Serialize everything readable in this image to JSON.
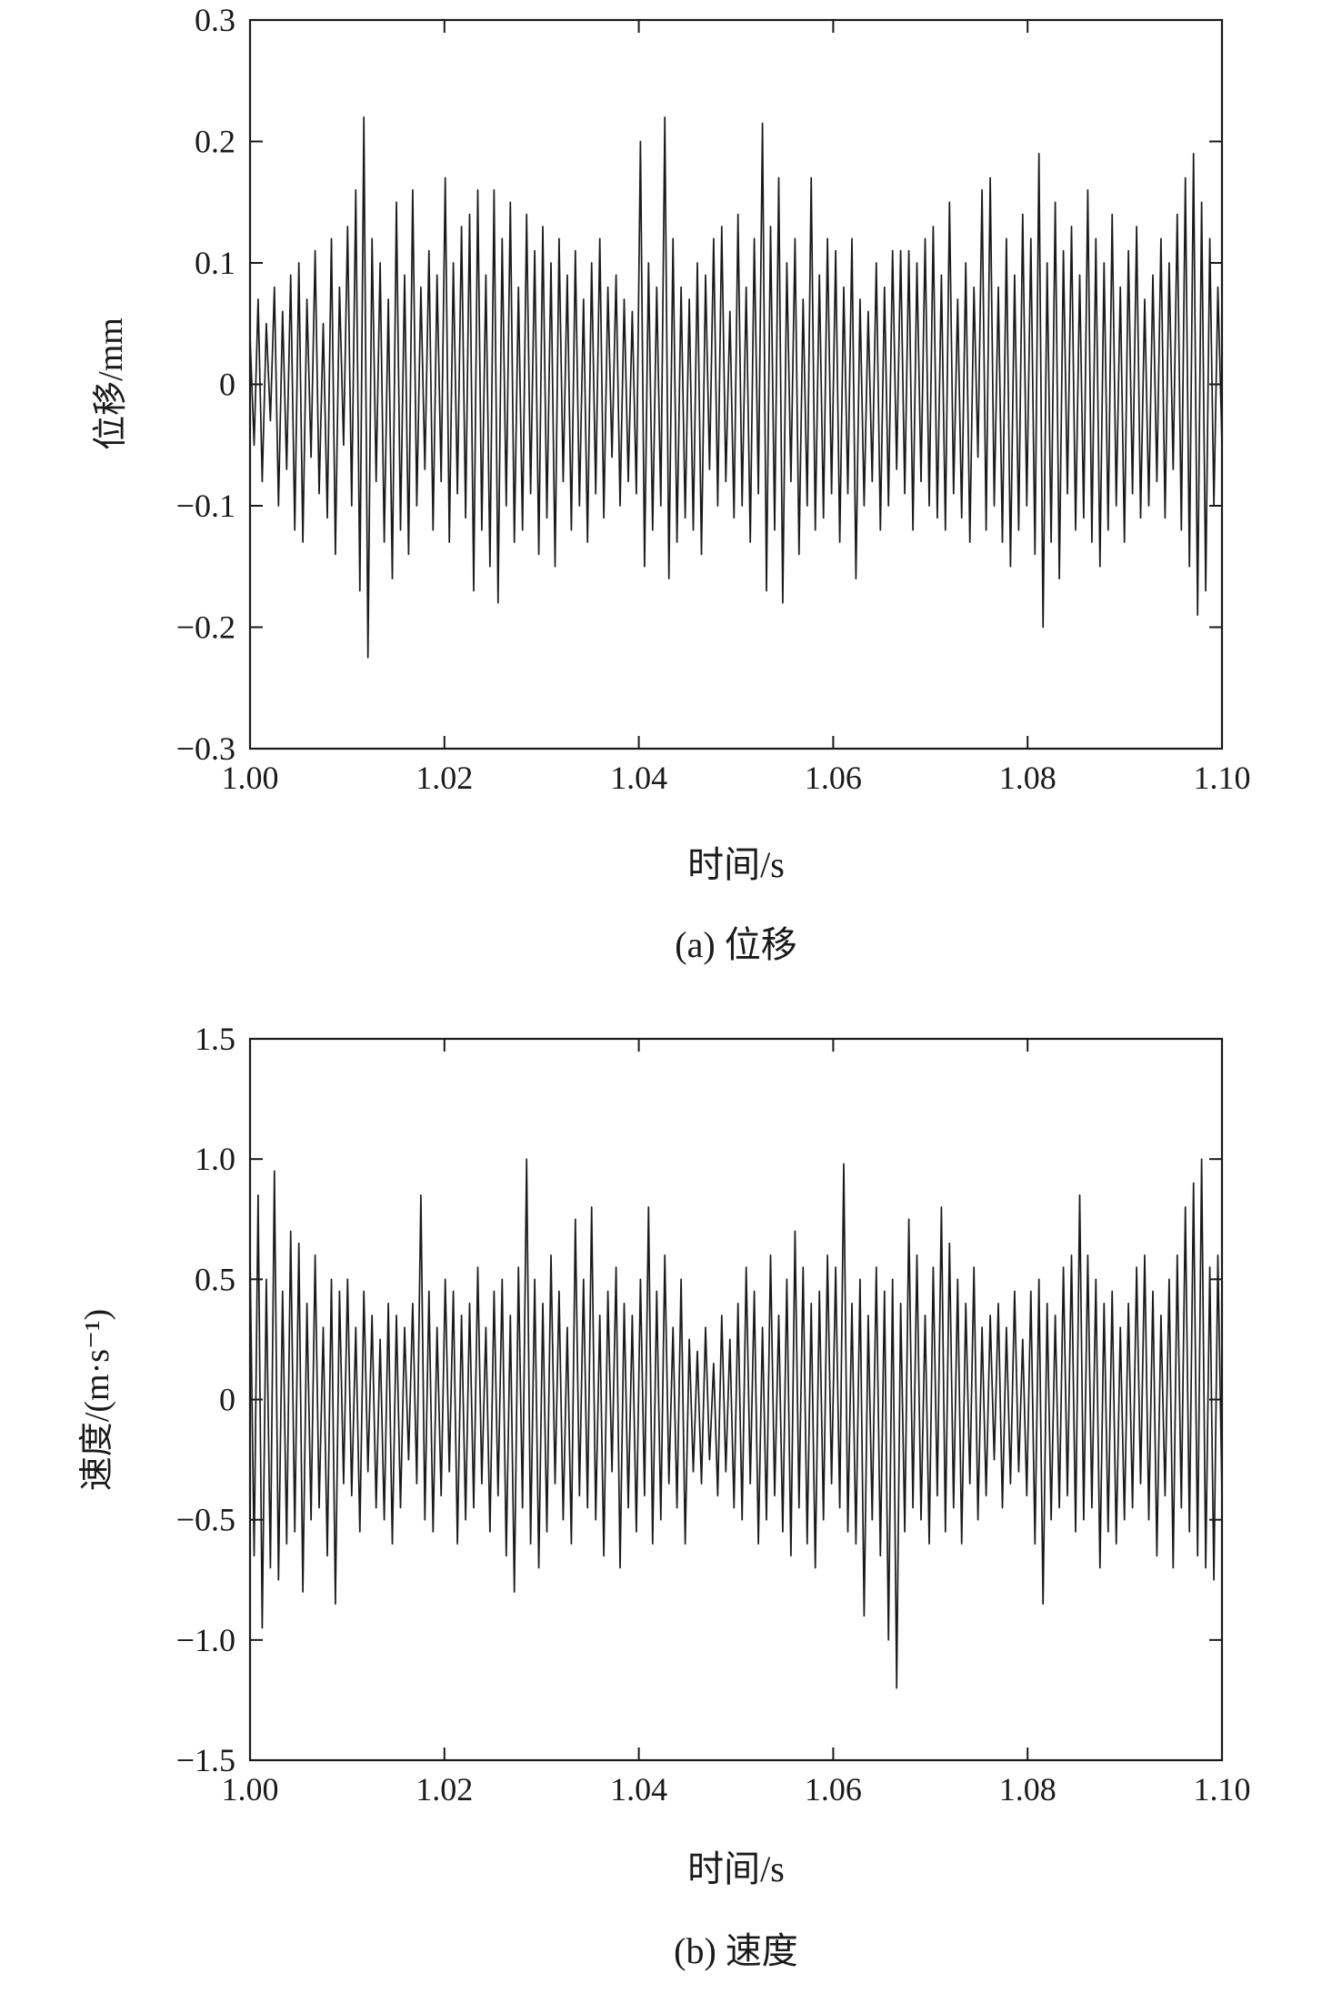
{
  "figure": {
    "background": "#ffffff",
    "line_color": "#1a1a1a",
    "axis_color": "#1a1a1a"
  },
  "chart_data": [
    {
      "type": "line",
      "title": "(a) 位移",
      "xlabel": "时间/s",
      "ylabel": "位移/mm",
      "xlim": [
        1.0,
        1.1
      ],
      "ylim": [
        -0.3,
        0.3
      ],
      "x_ticks": [
        "1.00",
        "1.02",
        "1.04",
        "1.06",
        "1.08",
        "1.10"
      ],
      "x_tick_values": [
        1.0,
        1.02,
        1.04,
        1.06,
        1.08,
        1.1
      ],
      "y_ticks": [
        "0.3",
        "0.2",
        "0.1",
        "0",
        "−0.1",
        "−0.2",
        "−0.3"
      ],
      "y_tick_values": [
        0.3,
        0.2,
        0.1,
        0,
        -0.1,
        -0.2,
        -0.3
      ],
      "legend": null,
      "grid": false,
      "series": [
        {
          "name": "displacement",
          "values": [
            0.04,
            -0.05,
            0.07,
            -0.08,
            0.05,
            -0.03,
            0.08,
            -0.1,
            0.06,
            -0.07,
            0.09,
            -0.12,
            0.1,
            -0.13,
            0.07,
            -0.06,
            0.11,
            -0.09,
            0.05,
            -0.11,
            0.12,
            -0.14,
            0.08,
            -0.05,
            0.13,
            -0.1,
            0.16,
            -0.17,
            0.22,
            -0.225,
            0.12,
            -0.08,
            0.1,
            -0.13,
            0.07,
            -0.16,
            0.15,
            -0.12,
            0.09,
            -0.14,
            0.16,
            -0.1,
            0.08,
            -0.07,
            0.11,
            -0.12,
            0.09,
            -0.08,
            0.17,
            -0.13,
            0.1,
            -0.09,
            0.13,
            -0.11,
            0.14,
            -0.17,
            0.16,
            -0.12,
            0.09,
            -0.15,
            0.16,
            -0.18,
            0.12,
            -0.1,
            0.15,
            -0.13,
            0.08,
            -0.12,
            0.14,
            -0.09,
            0.11,
            -0.14,
            0.13,
            -0.11,
            0.1,
            -0.15,
            0.12,
            -0.08,
            0.09,
            -0.12,
            0.11,
            -0.1,
            0.07,
            -0.13,
            0.1,
            -0.09,
            0.12,
            -0.11,
            0.08,
            -0.06,
            0.09,
            -0.1,
            0.07,
            -0.08,
            0.06,
            -0.09,
            0.2,
            -0.15,
            0.1,
            -0.12,
            0.08,
            -0.1,
            0.22,
            -0.16,
            0.12,
            -0.13,
            0.08,
            -0.11,
            0.07,
            -0.12,
            0.1,
            -0.14,
            0.09,
            -0.07,
            0.12,
            -0.1,
            0.13,
            -0.08,
            0.06,
            -0.11,
            0.14,
            -0.1,
            0.08,
            -0.13,
            0.12,
            -0.09,
            0.215,
            -0.17,
            0.13,
            -0.12,
            0.17,
            -0.18,
            0.1,
            -0.08,
            0.12,
            -0.14,
            0.07,
            -0.1,
            0.17,
            -0.12,
            0.09,
            -0.11,
            0.12,
            -0.09,
            0.11,
            -0.13,
            0.08,
            -0.09,
            0.12,
            -0.16,
            0.07,
            -0.1,
            0.06,
            -0.08,
            0.1,
            -0.12,
            0.08,
            -0.1,
            0.11,
            -0.07,
            0.11,
            -0.09,
            0.11,
            -0.12,
            0.1,
            -0.08,
            0.12,
            -0.1,
            0.13,
            -0.11,
            0.09,
            -0.12,
            0.15,
            -0.09,
            0.07,
            -0.11,
            0.1,
            -0.13,
            0.08,
            -0.06,
            0.16,
            -0.12,
            0.17,
            -0.1,
            0.08,
            -0.13,
            0.12,
            -0.15,
            0.09,
            -0.12,
            0.14,
            -0.1,
            0.12,
            -0.14,
            0.19,
            -0.2,
            0.1,
            -0.13,
            0.15,
            -0.16,
            0.11,
            -0.09,
            0.13,
            -0.12,
            0.09,
            -0.11,
            0.16,
            -0.13,
            0.12,
            -0.15,
            0.1,
            -0.12,
            0.14,
            -0.1,
            0.08,
            -0.13,
            0.11,
            -0.09,
            0.13,
            -0.11,
            0.07,
            -0.1,
            0.09,
            -0.08,
            0.12,
            -0.11,
            0.1,
            -0.07,
            0.14,
            -0.12,
            0.17,
            -0.15,
            0.19,
            -0.19,
            0.15,
            -0.17,
            0.12,
            -0.1,
            0.08,
            -0.05
          ]
        }
      ]
    },
    {
      "type": "line",
      "title": "(b) 速度",
      "xlabel": "时间/s",
      "ylabel": "速度/(m·s⁻¹)",
      "xlim": [
        1.0,
        1.1
      ],
      "ylim": [
        -1.5,
        1.5
      ],
      "x_ticks": [
        "1.00",
        "1.02",
        "1.04",
        "1.06",
        "1.08",
        "1.10"
      ],
      "x_tick_values": [
        1.0,
        1.02,
        1.04,
        1.06,
        1.08,
        1.1
      ],
      "y_ticks": [
        "1.5",
        "1.0",
        "0.5",
        "0",
        "−0.5",
        "−1.0",
        "−1.5"
      ],
      "y_tick_values": [
        1.5,
        1.0,
        0.5,
        0,
        -0.5,
        -1.0,
        -1.5
      ],
      "legend": null,
      "grid": false,
      "series": [
        {
          "name": "velocity",
          "values": [
            0.6,
            -0.65,
            0.85,
            -0.95,
            0.5,
            -0.7,
            0.95,
            -0.75,
            0.45,
            -0.6,
            0.7,
            -0.55,
            0.65,
            -0.8,
            0.4,
            -0.5,
            0.6,
            -0.45,
            0.3,
            -0.65,
            0.5,
            -0.85,
            0.45,
            -0.35,
            0.5,
            -0.4,
            0.3,
            -0.55,
            0.45,
            -0.3,
            0.35,
            -0.45,
            0.25,
            -0.5,
            0.4,
            -0.6,
            0.35,
            -0.45,
            0.3,
            -0.25,
            0.4,
            -0.35,
            0.85,
            -0.5,
            0.45,
            -0.55,
            0.3,
            -0.4,
            0.5,
            -0.3,
            0.45,
            -0.6,
            0.35,
            -0.5,
            0.4,
            -0.45,
            0.55,
            -0.35,
            0.3,
            -0.55,
            0.45,
            -0.4,
            0.5,
            -0.65,
            0.35,
            -0.8,
            0.55,
            -0.45,
            1.0,
            -0.6,
            0.5,
            -0.7,
            0.4,
            -0.55,
            0.6,
            -0.35,
            0.45,
            -0.5,
            0.3,
            -0.6,
            0.75,
            -0.4,
            0.5,
            -0.45,
            0.8,
            -0.5,
            0.35,
            -0.65,
            0.45,
            -0.3,
            0.55,
            -0.7,
            0.4,
            -0.45,
            0.35,
            -0.55,
            0.5,
            -0.4,
            0.8,
            -0.6,
            0.45,
            -0.5,
            0.6,
            -0.35,
            0.3,
            -0.45,
            0.5,
            -0.6,
            0.25,
            -0.3,
            0.2,
            -0.35,
            0.3,
            -0.25,
            0.15,
            -0.4,
            0.35,
            -0.3,
            0.25,
            -0.45,
            0.4,
            -0.5,
            0.55,
            -0.35,
            0.45,
            -0.6,
            0.3,
            -0.5,
            0.6,
            -0.4,
            0.35,
            -0.55,
            0.5,
            -0.65,
            0.7,
            -0.45,
            0.55,
            -0.6,
            0.4,
            -0.7,
            0.45,
            -0.5,
            0.6,
            -0.35,
            0.55,
            -0.45,
            0.98,
            -0.55,
            0.4,
            -0.6,
            0.5,
            -0.9,
            0.35,
            -0.5,
            0.55,
            -0.65,
            0.45,
            -1.0,
            0.5,
            -1.2,
            0.4,
            -0.55,
            0.75,
            -0.45,
            0.6,
            -0.5,
            0.35,
            -0.6,
            0.55,
            -0.4,
            0.8,
            -0.55,
            0.65,
            -0.45,
            0.5,
            -0.6,
            0.4,
            -0.35,
            0.55,
            -0.5,
            0.3,
            -0.4,
            0.35,
            -0.25,
            0.4,
            -0.45,
            0.3,
            -0.35,
            0.45,
            -0.3,
            0.25,
            -0.4,
            0.45,
            -0.6,
            0.5,
            -0.85,
            0.4,
            -0.5,
            0.35,
            -0.45,
            0.55,
            -0.4,
            0.6,
            -0.55,
            0.85,
            -0.5,
            0.6,
            -0.45,
            0.5,
            -0.7,
            0.4,
            -0.55,
            0.45,
            -0.6,
            0.3,
            -0.5,
            0.4,
            -0.45,
            0.55,
            -0.35,
            0.6,
            -0.5,
            0.45,
            -0.65,
            0.35,
            -0.4,
            0.5,
            -0.7,
            0.6,
            -0.45,
            0.8,
            -0.55,
            0.9,
            -0.65,
            1.0,
            -0.7,
            0.55,
            -0.75,
            0.6,
            -0.4
          ]
        }
      ]
    }
  ]
}
